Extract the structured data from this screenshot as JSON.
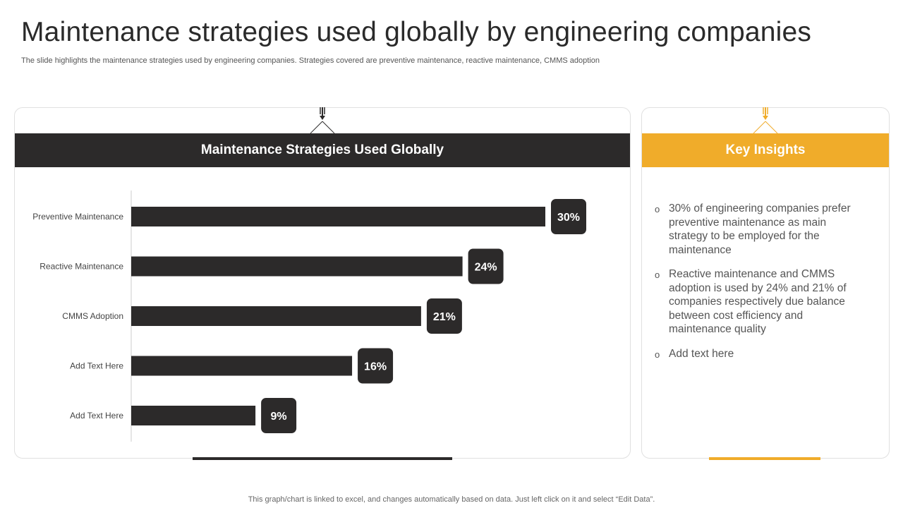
{
  "slide": {
    "title": "Maintenance strategies used globally by engineering companies",
    "subtitle": "The slide highlights the maintenance strategies used by engineering companies. Strategies covered are preventive maintenance, reactive maintenance, CMMS  adoption",
    "footnote": "This graph/chart is linked to excel,  and changes automatically based on data. Just left click on it and select “Edit Data”."
  },
  "chart_panel": {
    "header": "Maintenance Strategies Used Globally"
  },
  "insights_panel": {
    "header": "Key Insights",
    "bullet_symbol": "o",
    "items": [
      "30% of engineering companies prefer preventive maintenance as main strategy to be employed for the maintenance",
      "Reactive maintenance and CMMS adoption is used by 24% and 21% of companies respectively due balance between cost efficiency and maintenance quality",
      "Add text here"
    ]
  },
  "colors": {
    "dark": "#2c2a2a",
    "accent": "#f0ac2a",
    "axis": "#cccccc"
  },
  "chart_data": {
    "type": "bar",
    "orientation": "horizontal",
    "title": "Maintenance Strategies Used Globally",
    "categories": [
      "Preventive Maintenance",
      "Reactive Maintenance",
      "CMMS Adoption",
      "Add Text Here",
      "Add Text Here"
    ],
    "values": [
      30,
      24,
      21,
      16,
      9
    ],
    "value_labels": [
      "30%",
      "24%",
      "21%",
      "16%",
      "9%"
    ],
    "unit": "%",
    "xlim": [
      0,
      30
    ],
    "xlabel": "",
    "ylabel": "",
    "grid": false
  }
}
